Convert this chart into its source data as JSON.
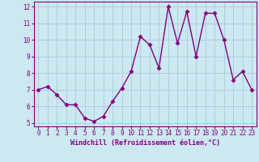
{
  "x": [
    0,
    1,
    2,
    3,
    4,
    5,
    6,
    7,
    8,
    9,
    10,
    11,
    12,
    13,
    14,
    15,
    16,
    17,
    18,
    19,
    20,
    21,
    22,
    23
  ],
  "y": [
    7.0,
    7.2,
    6.7,
    6.1,
    6.1,
    5.3,
    5.1,
    5.4,
    6.3,
    7.1,
    8.1,
    10.2,
    9.7,
    8.3,
    12.0,
    9.8,
    11.7,
    9.0,
    11.6,
    11.6,
    10.0,
    7.6,
    8.1,
    7.0
  ],
  "ylim_min": 4.8,
  "ylim_max": 12.3,
  "xlim_min": -0.5,
  "xlim_max": 23.5,
  "yticks": [
    5,
    6,
    7,
    8,
    9,
    10,
    11,
    12
  ],
  "xticks": [
    0,
    1,
    2,
    3,
    4,
    5,
    6,
    7,
    8,
    9,
    10,
    11,
    12,
    13,
    14,
    15,
    16,
    17,
    18,
    19,
    20,
    21,
    22,
    23
  ],
  "xlabel": "Windchill (Refroidissement éolien,°C)",
  "line_color": "#800080",
  "marker": "D",
  "marker_size": 2.5,
  "bg_color": "#cce8f0",
  "grid_color": "#aaccdd",
  "tick_color": "#800080",
  "label_color": "#800080",
  "linewidth": 1.0,
  "tick_fontsize": 5.5,
  "xlabel_fontsize": 6.0
}
